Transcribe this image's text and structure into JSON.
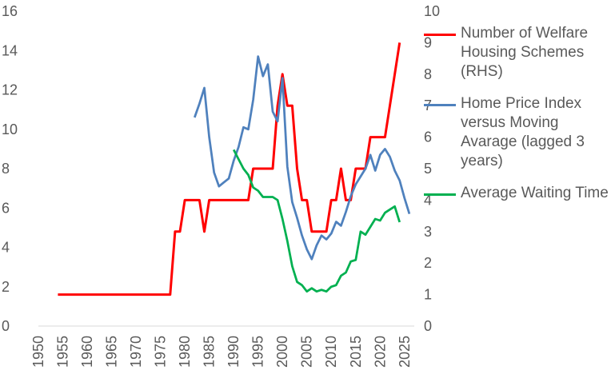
{
  "chart_data": {
    "type": "line",
    "x_tick_labels": [
      "1950",
      "1955",
      "1960",
      "1965",
      "1970",
      "1975",
      "1980",
      "1985",
      "1990",
      "1995",
      "2000",
      "2005",
      "2010",
      "2015",
      "2020",
      "2025"
    ],
    "y_left_tick_labels": [
      "0",
      "2",
      "4",
      "6",
      "8",
      "10",
      "12",
      "14",
      "16"
    ],
    "y_right_tick_labels": [
      "0",
      "1",
      "2",
      "3",
      "4",
      "5",
      "6",
      "7",
      "8",
      "9",
      "10"
    ],
    "xlim": [
      1950,
      2027
    ],
    "ylim_left": [
      0,
      16
    ],
    "ylim_right": [
      0,
      10
    ],
    "grid": false,
    "legend_position": "right",
    "series": [
      {
        "name": "Number of Welfare Housing Schemes (RHS)",
        "axis": "right",
        "color": "#ff0000",
        "x": [
          1954,
          1977,
          1978,
          1979,
          1980,
          1981,
          1982,
          1983,
          1984,
          1985,
          1986,
          1987,
          1988,
          1989,
          1990,
          1991,
          1992,
          1993,
          1994,
          1995,
          1996,
          1997,
          1998,
          1999,
          2000,
          2001,
          2002,
          2003,
          2004,
          2005,
          2006,
          2007,
          2008,
          2009,
          2010,
          2011,
          2012,
          2013,
          2014,
          2015,
          2016,
          2017,
          2018,
          2019,
          2020,
          2021,
          2022,
          2023,
          2024
        ],
        "values": [
          1,
          1,
          3,
          3,
          4,
          4,
          4,
          4,
          3,
          4,
          4,
          4,
          4,
          4,
          4,
          4,
          4,
          4,
          5,
          5,
          5,
          5,
          5,
          7,
          8,
          7,
          7,
          5,
          4,
          4,
          3,
          3,
          3,
          3,
          4,
          4,
          5,
          4,
          4,
          5,
          5,
          5,
          6,
          6,
          6,
          6,
          7,
          8,
          9
        ]
      },
      {
        "name": "Home Price Index versus Moving Avarage (lagged 3 years)",
        "axis": "left",
        "color": "#4f81bd",
        "x": [
          1982,
          1983,
          1984,
          1985,
          1986,
          1987,
          1988,
          1989,
          1990,
          1991,
          1992,
          1993,
          1994,
          1995,
          1996,
          1997,
          1998,
          1999,
          2000,
          2001,
          2002,
          2003,
          2004,
          2005,
          2006,
          2007,
          2008,
          2009,
          2010,
          2011,
          2012,
          2013,
          2014,
          2015,
          2016,
          2017,
          2018,
          2019,
          2020,
          2021,
          2022,
          2023,
          2024,
          2025,
          2026
        ],
        "values": [
          10.6,
          11.3,
          12.1,
          9.6,
          7.8,
          7.1,
          7.3,
          7.5,
          8.4,
          9.1,
          10.1,
          10.0,
          11.5,
          13.7,
          12.7,
          13.3,
          10.9,
          10.4,
          12.6,
          8.1,
          6.3,
          5.5,
          4.6,
          3.9,
          3.4,
          4.1,
          4.6,
          4.4,
          4.7,
          5.3,
          5.1,
          5.8,
          6.6,
          7.2,
          7.6,
          8.0,
          8.7,
          7.9,
          8.7,
          9.0,
          8.6,
          7.9,
          7.4,
          6.5,
          5.7
        ]
      },
      {
        "name": "Average Waiting Time",
        "axis": "right",
        "color": "#00b050",
        "x": [
          1990,
          1991,
          1992,
          1993,
          1994,
          1995,
          1996,
          1997,
          1998,
          1999,
          2000,
          2001,
          2002,
          2003,
          2004,
          2005,
          2006,
          2007,
          2008,
          2009,
          2010,
          2011,
          2012,
          2013,
          2014,
          2015,
          2016,
          2017,
          2018,
          2019,
          2020,
          2021,
          2022,
          2023,
          2024
        ],
        "values": [
          5.6,
          5.3,
          5.0,
          4.8,
          4.4,
          4.3,
          4.1,
          4.1,
          4.1,
          4.0,
          3.4,
          2.7,
          1.9,
          1.4,
          1.3,
          1.1,
          1.2,
          1.1,
          1.15,
          1.1,
          1.25,
          1.3,
          1.6,
          1.7,
          2.05,
          2.1,
          3.0,
          2.9,
          3.15,
          3.4,
          3.35,
          3.6,
          3.7,
          3.8,
          3.3
        ]
      }
    ]
  }
}
